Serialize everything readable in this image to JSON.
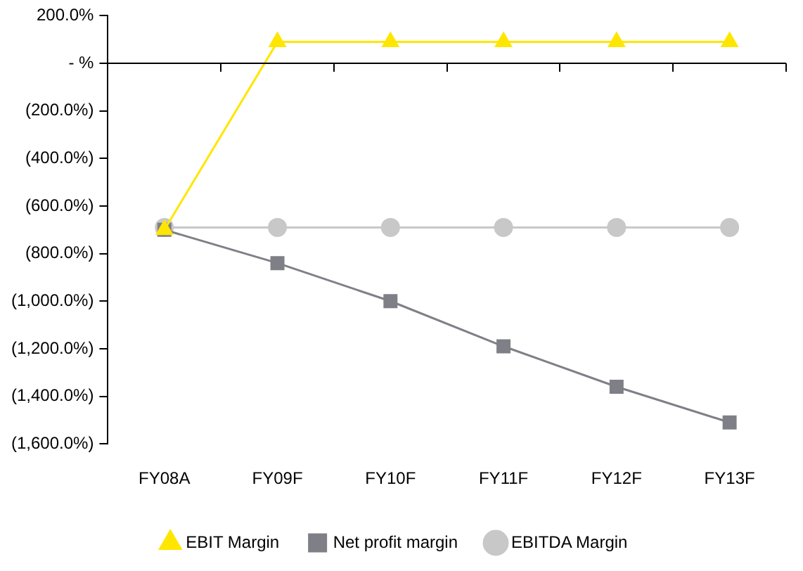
{
  "chart_data": {
    "type": "line",
    "categories": [
      "FY08A",
      "FY09F",
      "FY10F",
      "FY11F",
      "FY12F",
      "FY13F"
    ],
    "series": [
      {
        "name": "EBIT Margin",
        "color": "#ffe600",
        "marker": "triangle",
        "values": [
          -700,
          90,
          90,
          90,
          90,
          90
        ]
      },
      {
        "name": "Net profit margin",
        "color": "#7f7f87",
        "marker": "square",
        "values": [
          -700,
          -840,
          -1000,
          -1190,
          -1360,
          -1510
        ]
      },
      {
        "name": "EBITDA Margin",
        "color": "#c8c8c8",
        "marker": "circle",
        "values": [
          -690,
          -690,
          -690,
          -690,
          -690,
          -690
        ]
      }
    ],
    "ylim": [
      -1600,
      200
    ],
    "yticks": [
      {
        "value": 200,
        "label": "200.0%"
      },
      {
        "value": 0,
        "label": "- %"
      },
      {
        "value": -200,
        "label": "(200.0%)"
      },
      {
        "value": -400,
        "label": "(400.0%)"
      },
      {
        "value": -600,
        "label": "(600.0%)"
      },
      {
        "value": -800,
        "label": "(800.0%)"
      },
      {
        "value": -1000,
        "label": "(1,000.0%)"
      },
      {
        "value": -1200,
        "label": "(1,200.0%)"
      },
      {
        "value": -1400,
        "label": "(1,400.0%)"
      },
      {
        "value": -1600,
        "label": "(1,600.0%)"
      }
    ],
    "ref_lines": [
      {
        "axis": "y",
        "value": 0,
        "color": "#000000"
      }
    ],
    "grid": false,
    "legend": "bottom",
    "line_style": "solid"
  }
}
